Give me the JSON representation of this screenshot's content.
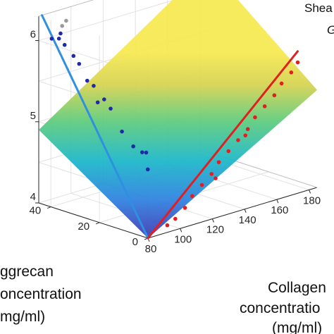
{
  "chart_data": {
    "type": "surface3d",
    "title": "Shea",
    "subtitle": "G",
    "xlabel": [
      "Collagen",
      "concentratio",
      "(mg/ml)"
    ],
    "ylabel": [
      "ggrecan",
      "oncentration",
      "mg/ml)"
    ],
    "x_ticks": [
      "80",
      "100",
      "120",
      "140",
      "160",
      "180"
    ],
    "y_ticks": [
      "0",
      "20",
      "40"
    ],
    "z_ticks": [
      "4",
      "5",
      "6"
    ],
    "xlim": [
      80,
      185
    ],
    "ylim": [
      0,
      45
    ],
    "zlim_log10": [
      4,
      6.3
    ],
    "surface_log10_G": {
      "x": [
        80,
        185
      ],
      "y": [
        0,
        45
      ],
      "values": [
        [
          4.0,
          5.2
        ],
        [
          4.9,
          6.3
        ]
      ]
    },
    "series": [
      {
        "color": "#1f2aa8",
        "points": [
          {
            "x": 82,
            "y": 38,
            "log10_g": 6.08
          },
          {
            "x": 84,
            "y": 37,
            "log10_g": 6.0
          },
          {
            "x": 88,
            "y": 36,
            "log10_g": 5.85
          },
          {
            "x": 90,
            "y": 35,
            "log10_g": 5.75
          },
          {
            "x": 92,
            "y": 33,
            "log10_g": 5.55
          },
          {
            "x": 93,
            "y": 31,
            "log10_g": 5.5
          },
          {
            "x": 95,
            "y": 28,
            "log10_g": 5.35
          },
          {
            "x": 96,
            "y": 26,
            "log10_g": 5.25
          },
          {
            "x": 97,
            "y": 22,
            "log10_g": 5.0
          },
          {
            "x": 98,
            "y": 18,
            "log10_g": 4.85
          },
          {
            "x": 99,
            "y": 15,
            "log10_g": 4.8
          },
          {
            "x": 100,
            "y": 14,
            "log10_g": 4.8
          },
          {
            "x": 86,
            "y": 40,
            "log10_g": 6.1
          },
          {
            "x": 82,
            "y": 41,
            "log10_g": 6.05
          },
          {
            "x": 104,
            "y": 16,
            "log10_g": 4.55
          },
          {
            "x": 94,
            "y": 30,
            "log10_g": 5.3
          }
        ]
      },
      {
        "color": "#e02020",
        "points": [
          {
            "x": 95,
            "y": 2,
            "log10_g": 4.05
          },
          {
            "x": 100,
            "y": 2,
            "log10_g": 4.1
          },
          {
            "x": 106,
            "y": 2,
            "log10_g": 4.2
          },
          {
            "x": 112,
            "y": 3,
            "log10_g": 4.3
          },
          {
            "x": 118,
            "y": 3,
            "log10_g": 4.4
          },
          {
            "x": 124,
            "y": 3,
            "log10_g": 4.5
          },
          {
            "x": 130,
            "y": 4,
            "log10_g": 4.6
          },
          {
            "x": 136,
            "y": 4,
            "log10_g": 4.7
          },
          {
            "x": 142,
            "y": 4,
            "log10_g": 4.8
          },
          {
            "x": 148,
            "y": 4,
            "log10_g": 4.9
          },
          {
            "x": 154,
            "y": 5,
            "log10_g": 5.0
          },
          {
            "x": 160,
            "y": 5,
            "log10_g": 5.1
          },
          {
            "x": 166,
            "y": 5,
            "log10_g": 5.2
          },
          {
            "x": 172,
            "y": 6,
            "log10_g": 5.3
          },
          {
            "x": 178,
            "y": 6,
            "log10_g": 5.4
          },
          {
            "x": 182,
            "y": 6,
            "log10_g": 5.5
          },
          {
            "x": 125,
            "y": 2,
            "log10_g": 4.45
          },
          {
            "x": 145,
            "y": 3,
            "log10_g": 4.85
          }
        ]
      },
      {
        "color": "#9a9a9a",
        "points": [
          {
            "x": 90,
            "y": 42,
            "log10_g": 6.15
          },
          {
            "x": 94,
            "y": 43,
            "log10_g": 6.18
          }
        ]
      }
    ],
    "fit_lines": [
      {
        "color": "#2f8fe0",
        "from": {
          "x": 80,
          "y": 0,
          "log10_g": 4.0
        },
        "to": {
          "x": 82,
          "y": 45,
          "log10_g": 6.3
        }
      },
      {
        "color": "#e02020",
        "from": {
          "x": 80,
          "y": 0,
          "log10_g": 4.0
        },
        "to": {
          "x": 185,
          "y": 8,
          "log10_g": 5.6
        }
      }
    ],
    "grid": true
  }
}
